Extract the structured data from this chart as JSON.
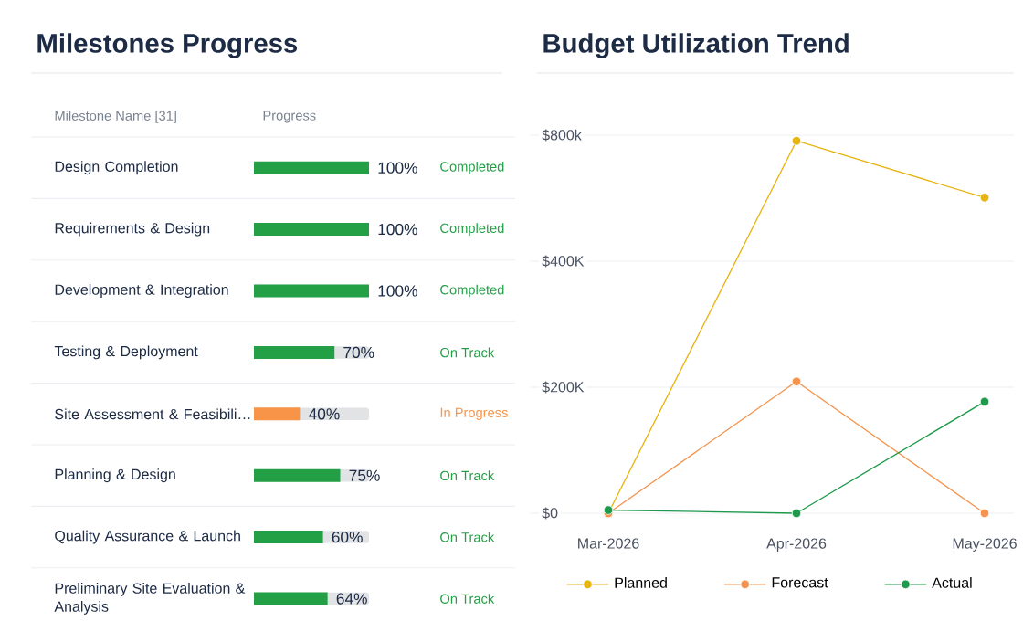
{
  "chart_data": [
    {
      "type": "bar",
      "orientation": "horizontal",
      "title": "Milestones Progress",
      "ylabel": "Milestone Name [31]",
      "xlabel": "Progress",
      "categories": [
        "Design Completion",
        "Requirements & Design",
        "Development & Integration",
        "Testing & Deployment",
        "Site Assessment & Feasibili…",
        "Planning & Design",
        "Quality Assurance & Launch",
        "Preliminary Site Evaluation & Analysis"
      ],
      "values": [
        100,
        100,
        100,
        70,
        40,
        75,
        60,
        64
      ],
      "colors": [
        "#23a046",
        "#23a046",
        "#23a046",
        "#23a046",
        "#f79448",
        "#23a046",
        "#23a046",
        "#23a046"
      ],
      "value_labels": [
        "100%",
        "100%",
        "100%",
        "70%",
        "40%",
        "75%",
        "60%",
        "64%"
      ],
      "annotations": [
        "Completed",
        "Completed",
        "Completed",
        "On Track",
        "In Progress",
        "On Track",
        "On Track",
        "On Track"
      ],
      "xlim": [
        0,
        100
      ],
      "tick_labels": "y"
    },
    {
      "type": "line",
      "title": "Budget Utilization Trend",
      "categories": [
        "Mar-2026",
        "Apr-2026",
        "May-2026"
      ],
      "series": [
        {
          "name": "Planned",
          "color": "#e6b512",
          "values": [
            0,
            591000,
            501000
          ]
        },
        {
          "name": "Forecast",
          "color": "#f4944e",
          "values": [
            0,
            209000,
            0
          ]
        },
        {
          "name": "Actual",
          "color": "#1f9a4c",
          "values": [
            5000,
            0,
            177000
          ]
        }
      ],
      "ylim": [
        0,
        600000
      ],
      "yticks": [
        {
          "value": 0,
          "label": "$0"
        },
        {
          "value": 200000,
          "label": "$200K"
        },
        {
          "value": 400000,
          "label": "$400K"
        },
        {
          "value": 600000,
          "label": null
        }
      ],
      "annotations": [
        "$800k"
      ],
      "grid": "y",
      "legend": "bottom",
      "marker": "circle",
      "line_style": "solid"
    }
  ]
}
